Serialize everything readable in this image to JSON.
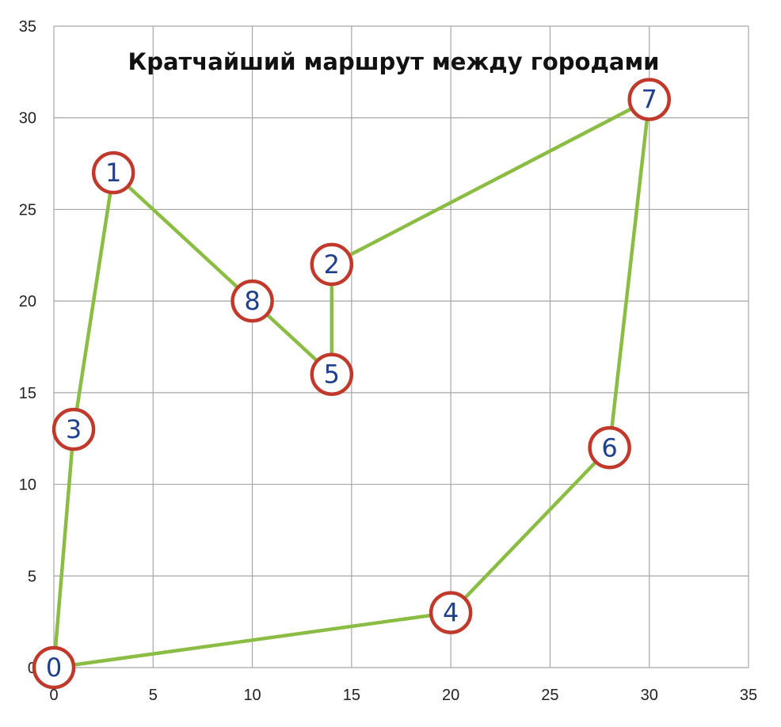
{
  "chart_data": {
    "type": "scatter",
    "title": "Кратчайший маршрут между городами",
    "xlabel": "",
    "ylabel": "",
    "xlim": [
      0,
      35
    ],
    "ylim": [
      0,
      35
    ],
    "x_ticks": [
      "0",
      "5",
      "10",
      "15",
      "20",
      "25",
      "30",
      "35"
    ],
    "y_ticks": [
      "0",
      "5",
      "10",
      "15",
      "20",
      "25",
      "30",
      "35"
    ],
    "grid": true,
    "points": [
      {
        "label": "0",
        "x": 0,
        "y": 0
      },
      {
        "label": "1",
        "x": 3,
        "y": 27
      },
      {
        "label": "2",
        "x": 14,
        "y": 22
      },
      {
        "label": "3",
        "x": 1,
        "y": 13
      },
      {
        "label": "4",
        "x": 20,
        "y": 3
      },
      {
        "label": "5",
        "x": 14,
        "y": 16
      },
      {
        "label": "6",
        "x": 28,
        "y": 12
      },
      {
        "label": "7",
        "x": 30,
        "y": 31
      },
      {
        "label": "8",
        "x": 10,
        "y": 20
      }
    ],
    "route": [
      "0",
      "3",
      "1",
      "8",
      "5",
      "2",
      "7",
      "6",
      "4",
      "0"
    ],
    "colors": {
      "route_line": "#8bbd44",
      "node_border": "#c0392b",
      "node_fill": "#ffffff",
      "node_label": "#1f3f8f",
      "grid": "#a6a6a6"
    }
  }
}
